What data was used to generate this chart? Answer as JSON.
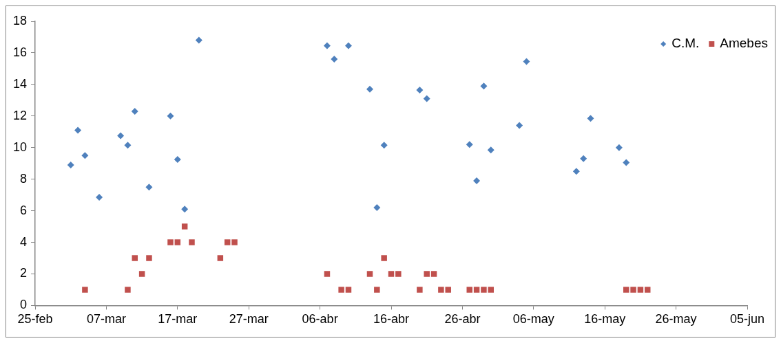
{
  "chart_data": {
    "type": "scatter",
    "xlim": [
      "--02-25",
      "--06-05"
    ],
    "xticks": [
      {
        "value": "--02-25",
        "label": "25-feb"
      },
      {
        "value": "--03-07",
        "label": "07-mar"
      },
      {
        "value": "--03-17",
        "label": "17-mar"
      },
      {
        "value": "--03-27",
        "label": "27-mar"
      },
      {
        "value": "--04-06",
        "label": "06-abr"
      },
      {
        "value": "--04-16",
        "label": "16-abr"
      },
      {
        "value": "--04-26",
        "label": "26-abr"
      },
      {
        "value": "--05-06",
        "label": "06-may"
      },
      {
        "value": "--05-16",
        "label": "16-may"
      },
      {
        "value": "--05-26",
        "label": "26-may"
      },
      {
        "value": "--06-05",
        "label": "05-jun"
      }
    ],
    "ylim": [
      0,
      18
    ],
    "yticks": [
      0,
      2,
      4,
      6,
      8,
      10,
      12,
      14,
      16,
      18
    ],
    "legend": "top right",
    "series": [
      {
        "name": "C.M.",
        "color": "#4f81bd",
        "marker": "diamond",
        "x": [
          "--03-02",
          "--03-03",
          "--03-04",
          "--03-06",
          "--03-09",
          "--03-10",
          "--03-11",
          "--03-13",
          "--03-16",
          "--03-17",
          "--03-18",
          "--03-20",
          "--04-07",
          "--04-08",
          "--04-10",
          "--04-13",
          "--04-14",
          "--04-15",
          "--04-20",
          "--04-21",
          "--04-27",
          "--04-28",
          "--04-29",
          "--04-30",
          "--05-04",
          "--05-05",
          "--05-12",
          "--05-13",
          "--05-14",
          "--05-18",
          "--05-19"
        ],
        "values": [
          8.9,
          11.1,
          9.5,
          6.85,
          10.75,
          10.15,
          12.3,
          7.5,
          12.0,
          9.25,
          6.1,
          16.8,
          16.45,
          15.6,
          16.45,
          13.7,
          6.2,
          10.15,
          13.65,
          13.1,
          10.2,
          7.9,
          13.9,
          9.85,
          11.4,
          15.45,
          8.5,
          9.3,
          11.85,
          10.0,
          9.05
        ]
      },
      {
        "name": "Amebes",
        "color": "#c0504d",
        "marker": "square",
        "x": [
          "--03-04",
          "--03-10",
          "--03-11",
          "--03-12",
          "--03-13",
          "--03-16",
          "--03-17",
          "--03-18",
          "--03-19",
          "--03-23",
          "--03-24",
          "--03-25",
          "--04-07",
          "--04-09",
          "--04-10",
          "--04-13",
          "--04-14",
          "--04-15",
          "--04-16",
          "--04-17",
          "--04-20",
          "--04-21",
          "--04-22",
          "--04-23",
          "--04-24",
          "--04-27",
          "--04-28",
          "--04-29",
          "--04-30",
          "--05-19",
          "--05-20",
          "--05-21",
          "--05-22"
        ],
        "values": [
          1,
          1,
          3,
          2,
          3,
          4,
          4,
          5,
          4,
          3,
          4,
          4,
          2,
          1,
          1,
          2,
          1,
          3,
          2,
          2,
          1,
          2,
          2,
          1,
          1,
          1,
          1,
          1,
          1,
          1,
          1,
          1,
          1
        ]
      }
    ]
  }
}
